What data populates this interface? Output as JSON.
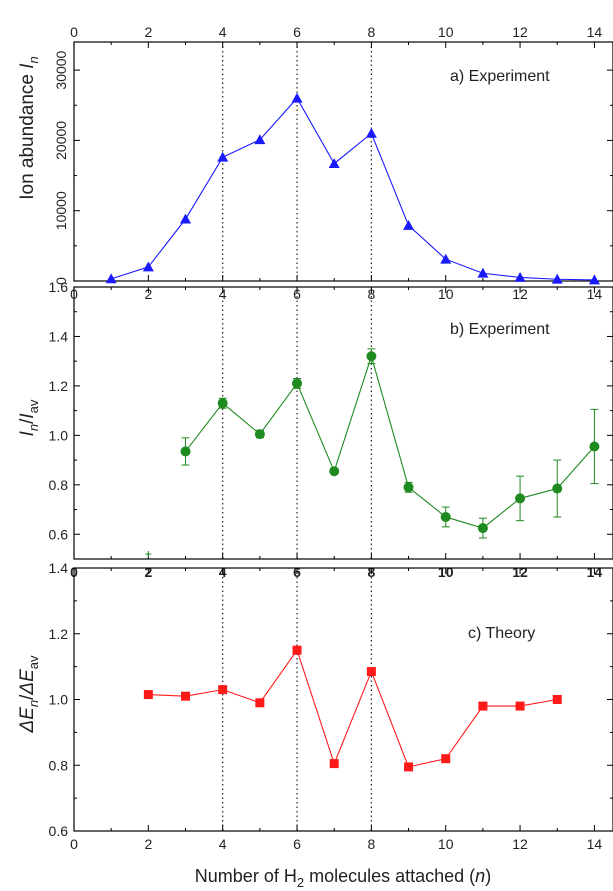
{
  "chart_data": [
    {
      "type": "line",
      "title": "",
      "panel_label": "a) Experiment",
      "ylabel": "Ion abundance I_n",
      "ylabel_main": "Ion abundance ",
      "ylabel_sym": "I",
      "ylabel_sub": "n",
      "xlim": [
        0,
        14.5
      ],
      "ylim": [
        0,
        34000
      ],
      "yticks": [
        0,
        10000,
        20000,
        30000
      ],
      "xticks_top": [
        0,
        2,
        4,
        6,
        8,
        10,
        12,
        14
      ],
      "xticks_bottom": [
        0,
        2,
        4,
        6,
        8,
        10,
        12,
        14
      ],
      "color": "#1a1aff",
      "marker": "triangle",
      "series": [
        {
          "x": [
            1,
            2,
            3,
            4,
            5,
            6,
            7,
            8,
            9,
            10,
            11,
            12,
            13,
            14
          ],
          "y": [
            300,
            2000,
            8800,
            17600,
            20100,
            26000,
            16700,
            21000,
            7900,
            3100,
            1100,
            500,
            250,
            150
          ]
        }
      ]
    },
    {
      "type": "line",
      "title": "",
      "panel_label": "b) Experiment",
      "ylabel": "I_n/I_av",
      "ylabel_sym1": "I",
      "ylabel_sub1": "n",
      "ylabel_sep": "/",
      "ylabel_sym2": "I",
      "ylabel_sub2": "av",
      "xlim": [
        0,
        14.5
      ],
      "ylim": [
        0.5,
        1.6
      ],
      "yticks": [
        0.6,
        0.8,
        1.0,
        1.2,
        1.4,
        1.6
      ],
      "ytick_labels": [
        "0.6",
        "0.8",
        "1.0",
        "1.2",
        "1.4",
        "1.6"
      ],
      "xticks": [
        0,
        2,
        4,
        6,
        8,
        10,
        12,
        14
      ],
      "color": "#1f8a1f",
      "marker": "circle",
      "stray_mark": {
        "x": 2,
        "y": 0.52
      },
      "series": [
        {
          "x": [
            3,
            4,
            5,
            6,
            7,
            8,
            9,
            10,
            11,
            12,
            13,
            14
          ],
          "y": [
            0.935,
            1.13,
            1.005,
            1.21,
            0.855,
            1.32,
            0.79,
            0.67,
            0.625,
            0.745,
            0.785,
            0.955
          ],
          "err": [
            0.055,
            0.02,
            0.015,
            0.02,
            0.01,
            0.03,
            0.02,
            0.04,
            0.04,
            0.09,
            0.115,
            0.15
          ]
        }
      ]
    },
    {
      "type": "line",
      "title": "",
      "panel_label": "c) Theory",
      "ylabel": "ΔE_n/ΔE_av",
      "ylabel_sym1": "ΔE",
      "ylabel_sub1": "n",
      "ylabel_sep": "/",
      "ylabel_sym2": "ΔE",
      "ylabel_sub2": "av",
      "xlim": [
        0,
        14.5
      ],
      "ylim": [
        0.6,
        1.4
      ],
      "yticks": [
        0.6,
        0.8,
        1.0,
        1.2,
        1.4
      ],
      "ytick_labels": [
        "0.6",
        "0.8",
        "1.0",
        "1.2",
        "1.4"
      ],
      "xticks": [
        0,
        2,
        4,
        6,
        8,
        10,
        12,
        14
      ],
      "xlabel": "Number of H2 molecules attached (n)",
      "xlabel_part1": "Number of H",
      "xlabel_sub": "2",
      "xlabel_part2": " molecules attached (",
      "xlabel_var": "n",
      "xlabel_part3": ")",
      "color": "#ff1a1a",
      "marker": "square",
      "series": [
        {
          "x": [
            2,
            3,
            4,
            5,
            6,
            7,
            8,
            9,
            10,
            11,
            12,
            13
          ],
          "y": [
            1.015,
            1.01,
            1.03,
            0.99,
            1.15,
            0.805,
            1.085,
            0.795,
            0.82,
            0.98,
            0.98,
            1.0
          ]
        }
      ]
    }
  ],
  "guide_lines_x": [
    4,
    6,
    8
  ]
}
